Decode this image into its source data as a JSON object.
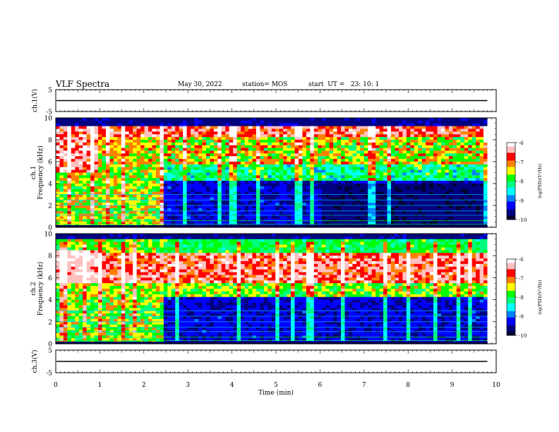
{
  "header": {
    "title": "VLF Spectra",
    "date": "May 30, 2022",
    "station": "station= MOS",
    "start_ut": "start  UT =   23: 10: 1"
  },
  "colors": {
    "colormap": [
      "#000030",
      "#000080",
      "#0000ff",
      "#0080ff",
      "#00ffff",
      "#00ff80",
      "#00ff00",
      "#ffff00",
      "#ff8000",
      "#ff0000",
      "#ffc0c0",
      "#ffffff"
    ],
    "background": "#ffffff"
  },
  "chart_data": [
    {
      "type": "line",
      "panel": "ch1-waveform",
      "ylabel": "ch.1(V)",
      "ylim": [
        -5,
        5
      ],
      "yticks": [
        "5",
        "-5"
      ],
      "trace_level": 0
    },
    {
      "type": "heatmap",
      "panel": "ch1-spectrogram",
      "ylabel": "ch.1\nFrequency  (kHz)",
      "ylim": [
        0,
        10
      ],
      "yticks": [
        "0",
        "2",
        "4",
        "6",
        "8",
        "10"
      ],
      "xlim": [
        0,
        10
      ],
      "cbar_label": "log(PSD)(V²/Hz)",
      "cbar_range": [
        -10,
        -6
      ],
      "cbar_ticks": [
        "-6",
        "-7",
        "-8",
        "-9",
        "-10"
      ],
      "active_band_khz": [
        0.3,
        9.2
      ],
      "quiet_lower_band_khz": [
        0,
        4.2
      ],
      "noisy_interval_min": [
        0,
        2.45
      ],
      "quieter_interval_min": [
        6.0,
        9.8
      ]
    },
    {
      "type": "heatmap",
      "panel": "ch2-spectrogram",
      "ylabel": "ch.2\nFrequency  (kHz)",
      "ylim": [
        0,
        10
      ],
      "yticks": [
        "0",
        "2",
        "4",
        "6",
        "8",
        "10"
      ],
      "xlim": [
        0,
        10
      ],
      "cbar_label": "log(PSD)(V²/Hz)",
      "cbar_range": [
        -10,
        -6
      ],
      "cbar_ticks": [
        "-6",
        "-7",
        "-8",
        "-9",
        "-10"
      ],
      "peak_band_khz": [
        5.5,
        8.0
      ]
    },
    {
      "type": "line",
      "panel": "ch3-waveform",
      "ylabel": "ch.3(V)",
      "ylim": [
        -5,
        5
      ],
      "yticks": [
        "5",
        "-5"
      ],
      "trace_level": 0
    }
  ],
  "xaxis": {
    "label": "Time  (min)",
    "range": [
      0,
      10
    ],
    "ticks": [
      "0",
      "1",
      "2",
      "3",
      "4",
      "5",
      "6",
      "7",
      "8",
      "9",
      "10"
    ]
  }
}
